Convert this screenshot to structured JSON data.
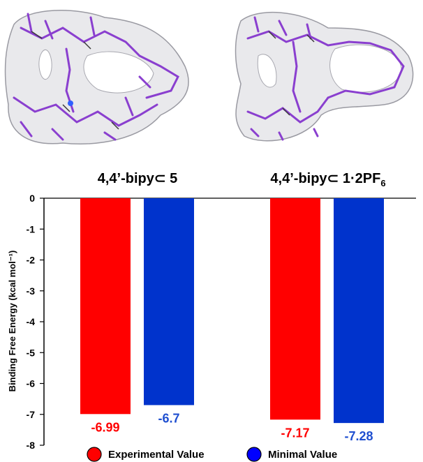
{
  "chart_data": {
    "type": "bar",
    "categories": [
      "4,4’-bipy⊂ 5",
      "4,4’-bipy⊂ 1·2PF6"
    ],
    "category_parts": [
      {
        "main": "4,4’-bipy⊂ 5",
        "sub": ""
      },
      {
        "main": "4,4’-bipy⊂ 1·2PF",
        "sub": "6"
      }
    ],
    "series": [
      {
        "name": "Experimental Value",
        "color": "#ff0000",
        "values": [
          -6.99,
          -7.17
        ],
        "labels": [
          "-6.99",
          "-7.17"
        ]
      },
      {
        "name": "Minimal Value",
        "color": "#0000ff",
        "values": [
          -6.7,
          -7.28
        ],
        "labels": [
          "-6.7",
          "-7.28"
        ]
      }
    ],
    "label_colors": [
      "#ff0000",
      "#1f4fd0"
    ],
    "bar_colors": [
      "#ff0000",
      "#0033cc"
    ],
    "ylabel": "Binding Free Energy (kcal mol⁻¹)",
    "ylim": [
      -8,
      0
    ],
    "yticks": [
      "0",
      "-1",
      "-2",
      "-3",
      "-4",
      "-5",
      "-6",
      "-7",
      "-8"
    ],
    "legend_position": "bottom",
    "grid": false
  }
}
